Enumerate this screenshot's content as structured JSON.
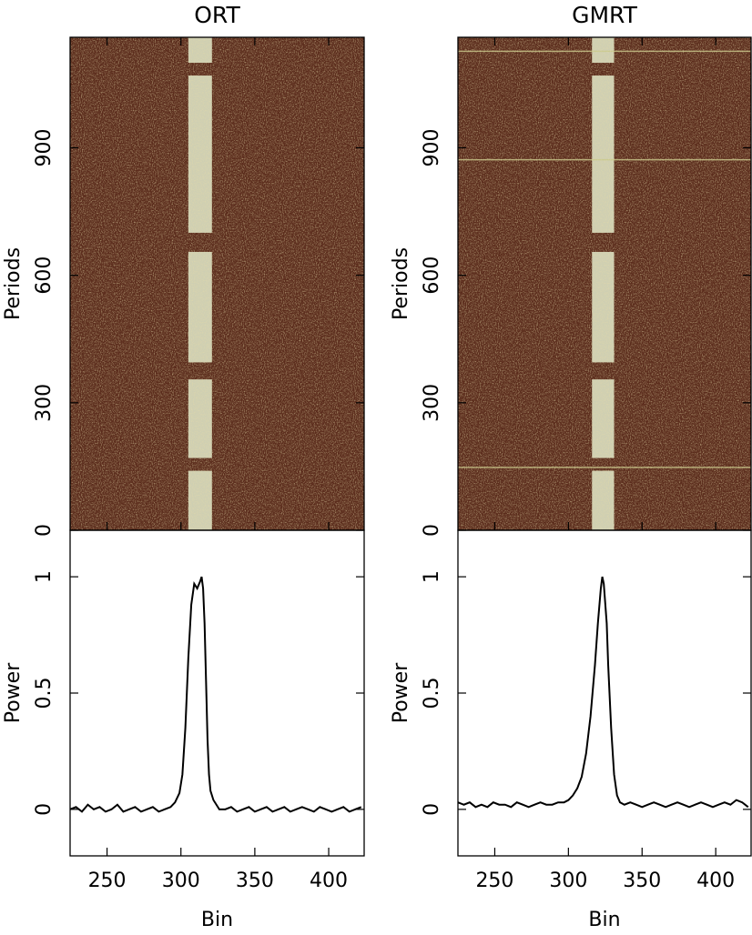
{
  "chart_data": [
    {
      "type": "pulse-stack",
      "title": "ORT",
      "ylabel": "Periods",
      "xlim": [
        225,
        424
      ],
      "ylim": [
        0,
        1160
      ],
      "yticks": [
        0,
        300,
        600,
        900
      ],
      "background_color": "#5b2c1c",
      "pulse_color": "#e4eccc",
      "on_pulse": {
        "bins": [
          305,
          321
        ],
        "periods": [
          [
            0,
            140
          ],
          [
            170,
            355
          ],
          [
            395,
            655
          ],
          [
            700,
            1070
          ],
          [
            1100,
            1160
          ]
        ]
      }
    },
    {
      "type": "line",
      "xlabel": "Bin",
      "ylabel": "Power",
      "xlim": [
        225,
        424
      ],
      "ylim": [
        -0.2,
        1.2
      ],
      "xticks": [
        250,
        300,
        350,
        400
      ],
      "yticks": [
        0,
        0.5,
        1
      ],
      "color": "#000000",
      "x": [
        225,
        229,
        233,
        237,
        241,
        245,
        249,
        253,
        257,
        261,
        265,
        269,
        273,
        277,
        281,
        285,
        289,
        293,
        296,
        299,
        301,
        303,
        305,
        307,
        309,
        311,
        313,
        314,
        315,
        316,
        317,
        318,
        319,
        320,
        322,
        324,
        326,
        330,
        334,
        338,
        342,
        346,
        350,
        354,
        358,
        362,
        366,
        370,
        374,
        378,
        382,
        386,
        390,
        394,
        398,
        402,
        406,
        410,
        414,
        418,
        422
      ],
      "values": [
        0.0,
        0.01,
        -0.01,
        0.02,
        0.0,
        0.01,
        -0.01,
        0.0,
        0.02,
        -0.01,
        0.0,
        0.01,
        -0.01,
        0.0,
        0.01,
        -0.01,
        0.0,
        0.01,
        0.03,
        0.07,
        0.15,
        0.35,
        0.65,
        0.88,
        0.97,
        0.95,
        0.98,
        1.0,
        0.95,
        0.8,
        0.55,
        0.3,
        0.15,
        0.08,
        0.04,
        0.02,
        0.0,
        0.0,
        0.01,
        -0.01,
        0.0,
        0.01,
        -0.01,
        0.0,
        0.01,
        -0.01,
        0.0,
        0.01,
        -0.01,
        0.0,
        0.01,
        0.0,
        -0.01,
        0.01,
        0.0,
        -0.01,
        0.0,
        0.01,
        -0.01,
        0.0,
        0.01
      ]
    },
    {
      "type": "pulse-stack",
      "title": "GMRT",
      "ylabel": "Periods",
      "xlim": [
        225,
        424
      ],
      "ylim": [
        0,
        1160
      ],
      "yticks": [
        0,
        300,
        600,
        900
      ],
      "background_color": "#5b2c1c",
      "pulse_color": "#e4eccc",
      "on_pulse": {
        "bins": [
          316,
          331
        ],
        "periods": [
          [
            0,
            140
          ],
          [
            170,
            355
          ],
          [
            395,
            655
          ],
          [
            700,
            1070
          ],
          [
            1100,
            1160
          ]
        ]
      },
      "rfi_periods": [
        148,
        872,
        1127
      ]
    },
    {
      "type": "line",
      "xlabel": "Bin",
      "ylabel": "Power",
      "xlim": [
        225,
        424
      ],
      "ylim": [
        -0.2,
        1.2
      ],
      "xticks": [
        250,
        300,
        350,
        400
      ],
      "yticks": [
        0,
        0.5,
        1
      ],
      "color": "#000000",
      "x": [
        225,
        229,
        233,
        237,
        241,
        245,
        249,
        253,
        257,
        261,
        265,
        269,
        273,
        277,
        281,
        285,
        289,
        293,
        297,
        300,
        303,
        306,
        309,
        312,
        315,
        318,
        320,
        322,
        323,
        324,
        326,
        327,
        329,
        331,
        333,
        335,
        338,
        342,
        346,
        350,
        354,
        358,
        362,
        366,
        370,
        374,
        378,
        382,
        386,
        390,
        394,
        398,
        402,
        406,
        410,
        414,
        418,
        422
      ],
      "values": [
        0.03,
        0.02,
        0.03,
        0.01,
        0.02,
        0.01,
        0.03,
        0.02,
        0.02,
        0.01,
        0.03,
        0.02,
        0.01,
        0.02,
        0.03,
        0.02,
        0.02,
        0.03,
        0.03,
        0.04,
        0.06,
        0.09,
        0.14,
        0.24,
        0.4,
        0.62,
        0.8,
        0.95,
        1.0,
        0.97,
        0.8,
        0.62,
        0.35,
        0.15,
        0.06,
        0.03,
        0.02,
        0.03,
        0.02,
        0.01,
        0.02,
        0.03,
        0.02,
        0.01,
        0.02,
        0.03,
        0.02,
        0.01,
        0.02,
        0.03,
        0.02,
        0.01,
        0.02,
        0.03,
        0.02,
        0.04,
        0.03,
        0.01
      ]
    }
  ]
}
